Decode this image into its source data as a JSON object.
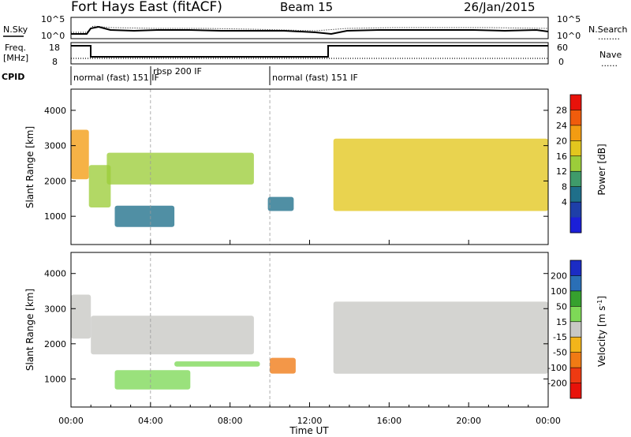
{
  "header": {
    "station": "Fort Hays East (fitACF)",
    "beam": "Beam 15",
    "date": "26/Jan/2015"
  },
  "noise_panel": {
    "left_label": "N.Sky",
    "right_label": "N.Search",
    "right_legend": "........",
    "left_ticks": [
      "10^5",
      "10^0"
    ],
    "right_ticks": [
      "10^5",
      "10^0"
    ]
  },
  "freq_panel": {
    "left_label_1": "Freq.",
    "left_label_2": "[MHz]",
    "left_ticks": [
      "18",
      "8"
    ],
    "right_label": "Nave",
    "right_legend": "......",
    "right_ticks": [
      "60",
      "0"
    ]
  },
  "cpid_panel": {
    "label": "CPID",
    "modes": [
      {
        "text": "normal (fast) 151 IF",
        "start_hour": 0.0
      },
      {
        "text": "rbsp 200 IF",
        "start_hour": 4.0
      },
      {
        "text": "normal (fast) 151 IF",
        "start_hour": 10.0
      }
    ]
  },
  "x_axis": {
    "ticks": [
      "00:00",
      "04:00",
      "08:00",
      "12:00",
      "16:00",
      "20:00",
      "00:00"
    ],
    "tick_hours": [
      0,
      4,
      8,
      12,
      16,
      20,
      24
    ],
    "label": "Time UT",
    "range": [
      0,
      24
    ]
  },
  "power_panel": {
    "y_label": "Slant Range [km]",
    "y_ticks": [
      "1000",
      "2000",
      "3000",
      "4000"
    ],
    "y_tick_values": [
      1000,
      2000,
      3000,
      4000
    ],
    "y_range": [
      200,
      4600
    ],
    "colorbar_label": "Power [dB]",
    "colorbar_ticks": [
      "28",
      "24",
      "20",
      "16",
      "12",
      "8",
      "4"
    ],
    "colorbar_colors": [
      "#e8120a",
      "#f05c0c",
      "#f39c12",
      "#e3c61e",
      "#9ccd3a",
      "#3f9b6a",
      "#1f6f8a",
      "#1e3fa8",
      "#1b1fd8"
    ]
  },
  "velocity_panel": {
    "y_label": "Slant Range [km]",
    "y_ticks": [
      "1000",
      "2000",
      "3000",
      "4000"
    ],
    "colorbar_label_main": "Velocity [m s",
    "colorbar_label_exp": "-1",
    "colorbar_label_end": "]",
    "colorbar_ticks": [
      "200",
      "100",
      "50",
      "15",
      "-15",
      "-50",
      "-100",
      "-200"
    ],
    "colorbar_colors": [
      "#1b2cc4",
      "#2a6fb6",
      "#36a12e",
      "#7ed957",
      "#c8c8c4",
      "#f3b51a",
      "#f07a14",
      "#ee3a12",
      "#e8120a"
    ]
  },
  "chart_data": {
    "type": "heatmap",
    "x_unit": "hours UT",
    "y_unit": "km",
    "power_regions": [
      {
        "t0": 0.0,
        "t1": 0.9,
        "r0": 2050,
        "r1": 3450,
        "db": 22
      },
      {
        "t0": 0.9,
        "t1": 2.0,
        "r0": 1250,
        "r1": 2450,
        "db": 14
      },
      {
        "t0": 1.8,
        "t1": 9.2,
        "r0": 1900,
        "r1": 2800,
        "db": 12
      },
      {
        "t0": 2.2,
        "t1": 5.2,
        "r0": 700,
        "r1": 1300,
        "db": 6
      },
      {
        "t0": 9.9,
        "t1": 11.2,
        "r0": 1150,
        "r1": 1550,
        "db": 5
      },
      {
        "t0": 13.2,
        "t1": 24.0,
        "r0": 1150,
        "r1": 3200,
        "db": 18
      }
    ],
    "velocity_regions": [
      {
        "t0": 0.0,
        "t1": 1.0,
        "r0": 2150,
        "r1": 3400,
        "v": 0
      },
      {
        "t0": 1.0,
        "t1": 9.2,
        "r0": 1700,
        "r1": 2800,
        "v": 0
      },
      {
        "t0": 2.2,
        "t1": 6.0,
        "r0": 700,
        "r1": 1250,
        "v": 40
      },
      {
        "t0": 5.2,
        "t1": 9.5,
        "r0": 1350,
        "r1": 1500,
        "v": 40
      },
      {
        "t0": 10.0,
        "t1": 11.3,
        "r0": 1150,
        "r1": 1600,
        "v": -60
      },
      {
        "t0": 13.2,
        "t1": 24.0,
        "r0": 1150,
        "r1": 3200,
        "v": 0
      }
    ]
  }
}
